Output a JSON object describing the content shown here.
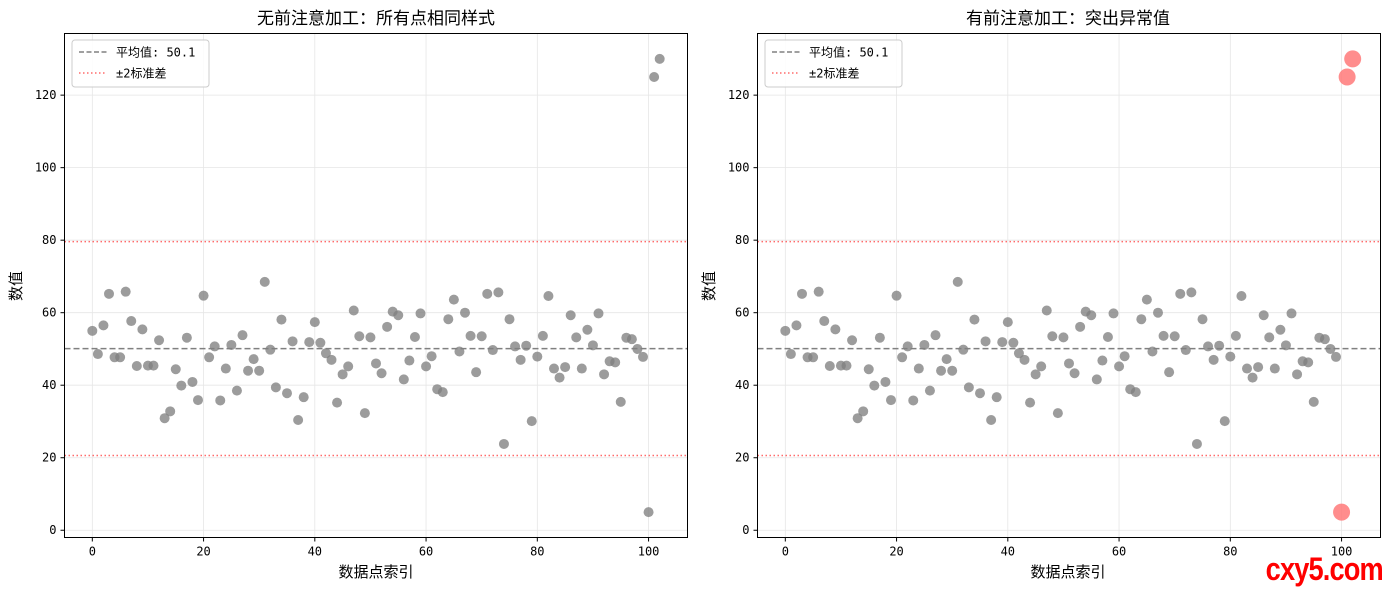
{
  "chart_data": [
    {
      "type": "scatter",
      "title": "无前注意加工：所有点相同样式",
      "xlabel": "数据点索引",
      "ylabel": "数值",
      "xlim": [
        -5,
        107
      ],
      "ylim": [
        -2,
        137
      ],
      "xticks": [
        0,
        20,
        40,
        60,
        80,
        100
      ],
      "yticks": [
        0,
        20,
        40,
        60,
        80,
        100,
        120
      ],
      "grid": true,
      "legend_position": "upper-left",
      "legend": [
        "平均值: 50.1",
        "±2标准差"
      ],
      "mean": 50.1,
      "upper_band": 79.6,
      "lower_band": 20.6,
      "highlight_outliers": false,
      "colors": {
        "points": "#808080",
        "mean_line": "#808080",
        "std_line": "#ff6b6b"
      }
    },
    {
      "type": "scatter",
      "title": "有前注意加工：突出异常值",
      "xlabel": "数据点索引",
      "ylabel": "数值",
      "xlim": [
        -5,
        107
      ],
      "ylim": [
        -2,
        137
      ],
      "xticks": [
        0,
        20,
        40,
        60,
        80,
        100
      ],
      "yticks": [
        0,
        20,
        40,
        60,
        80,
        100,
        120
      ],
      "grid": true,
      "legend_position": "upper-left",
      "legend": [
        "平均值: 50.1",
        "±2标准差"
      ],
      "mean": 50.1,
      "upper_band": 79.6,
      "lower_band": 20.6,
      "highlight_outliers": true,
      "colors": {
        "points": "#808080",
        "mean_line": "#808080",
        "std_line": "#ff6b6b",
        "outliers": "#ff7070"
      }
    }
  ],
  "points": {
    "x": [
      0,
      1,
      2,
      3,
      4,
      5,
      6,
      7,
      8,
      9,
      10,
      11,
      12,
      13,
      14,
      15,
      16,
      17,
      18,
      19,
      20,
      21,
      22,
      23,
      24,
      25,
      26,
      27,
      28,
      29,
      30,
      31,
      32,
      33,
      34,
      35,
      36,
      37,
      38,
      39,
      40,
      41,
      42,
      43,
      44,
      45,
      46,
      47,
      48,
      49,
      50,
      51,
      52,
      53,
      54,
      55,
      56,
      57,
      58,
      59,
      60,
      61,
      62,
      63,
      64,
      65,
      66,
      67,
      68,
      69,
      70,
      71,
      72,
      73,
      74,
      75,
      76,
      77,
      78,
      79,
      80,
      81,
      82,
      83,
      84,
      85,
      86,
      87,
      88,
      89,
      90,
      91,
      92,
      93,
      94,
      95,
      96,
      97,
      98,
      99,
      100,
      101,
      102
    ],
    "y": [
      55.0,
      48.6,
      56.5,
      65.2,
      47.7,
      47.7,
      65.8,
      57.7,
      45.3,
      55.4,
      45.4,
      45.4,
      52.4,
      30.9,
      32.8,
      44.4,
      39.9,
      53.1,
      40.9,
      35.9,
      64.7,
      47.7,
      50.7,
      35.8,
      44.6,
      51.1,
      38.5,
      53.8,
      44.0,
      47.2,
      44.0,
      68.5,
      49.8,
      39.4,
      58.1,
      37.8,
      52.1,
      30.4,
      36.7,
      51.9,
      57.4,
      51.7,
      48.8,
      47.0,
      35.2,
      43.0,
      45.2,
      60.6,
      53.5,
      32.3,
      53.2,
      46.0,
      43.3,
      56.1,
      60.3,
      59.3,
      41.6,
      46.8,
      53.3,
      59.8,
      45.2,
      48.0,
      38.9,
      38.1,
      58.2,
      63.6,
      49.3,
      60.0,
      53.6,
      43.6,
      53.5,
      65.2,
      49.7,
      65.6,
      23.8,
      58.2,
      50.7,
      47.0,
      50.9,
      30.1,
      47.9,
      53.6,
      64.6,
      44.6,
      42.1,
      45.0,
      59.3,
      53.2,
      44.6,
      55.3,
      51.0,
      59.8,
      43.0,
      46.6,
      46.3,
      35.4,
      53.1,
      52.7,
      50.0,
      47.8,
      5.0,
      125.0,
      130.0
    ],
    "outliers_x": [
      100,
      101,
      102
    ]
  },
  "watermark": "cxy5.com"
}
